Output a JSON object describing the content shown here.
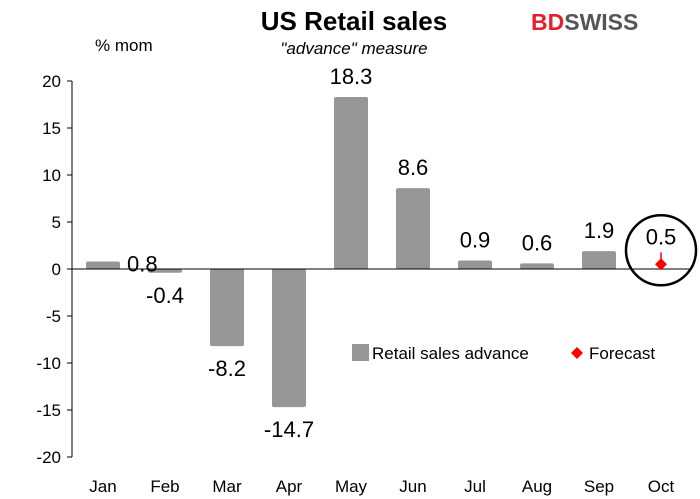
{
  "brand": {
    "part1": "BD",
    "part2": "SWISS",
    "colors": {
      "primary": "#e5202e"
    }
  },
  "chart_data": {
    "type": "bar",
    "title": "US Retail sales",
    "subtitle": "\"advance\" measure",
    "ylabel": "% mom",
    "xlabel": "",
    "categories": [
      "Jan",
      "Feb",
      "Mar",
      "Apr",
      "May",
      "Jun",
      "Jul",
      "Aug",
      "Sep",
      "Oct"
    ],
    "series": [
      {
        "name": "Retail sales advance",
        "type": "bar",
        "color": "#969696",
        "values": [
          0.8,
          -0.4,
          -8.2,
          -14.7,
          18.3,
          8.6,
          0.9,
          0.6,
          1.9,
          null
        ],
        "labels": [
          "0.8",
          "-0.4",
          "-8.2",
          "-14.7",
          "18.3",
          "8.6",
          "0.9",
          "0.6",
          "1.9",
          ""
        ]
      },
      {
        "name": "Forecast",
        "type": "marker",
        "marker": "diamond",
        "color": "#ff0000",
        "values": [
          null,
          null,
          null,
          null,
          null,
          null,
          null,
          null,
          null,
          0.5
        ],
        "labels": [
          "",
          "",
          "",
          "",
          "",
          "",
          "",
          "",
          "",
          "0.5"
        ]
      }
    ],
    "ylim": [
      -20,
      20
    ],
    "yticks": [
      -20,
      -15,
      -10,
      -5,
      0,
      5,
      10,
      15,
      20
    ],
    "yticklabels": [
      "-20",
      "-15",
      "-10",
      "-5",
      "0",
      "5",
      "10",
      "15",
      "20"
    ],
    "grid": false,
    "legend_position": "lower-right",
    "annotations": [
      {
        "type": "circle",
        "target": "Oct"
      }
    ]
  }
}
